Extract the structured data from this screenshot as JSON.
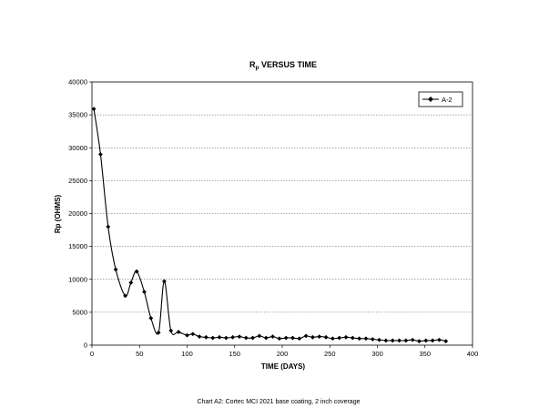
{
  "chart_data": {
    "type": "line",
    "title_main": "R",
    "title_sub": "p",
    "title_rest": " VERSUS TIME",
    "xlabel": "TIME (DAYS)",
    "ylabel": "Rp (OHMS)",
    "xlim": [
      0,
      400
    ],
    "ylim": [
      0,
      40000
    ],
    "xticks": [
      0,
      50,
      100,
      150,
      200,
      250,
      300,
      350,
      400
    ],
    "yticks": [
      0,
      5000,
      10000,
      15000,
      20000,
      25000,
      30000,
      35000,
      40000
    ],
    "grid": "horizontal-dotted",
    "legend_position": "top-right",
    "series": [
      {
        "name": "A-2",
        "color": "#000000",
        "marker": "diamond",
        "x": [
          2,
          9,
          17,
          25,
          35,
          41,
          47,
          55,
          62,
          70,
          76,
          83,
          91,
          100,
          106,
          113,
          120,
          127,
          134,
          141,
          148,
          155,
          162,
          169,
          176,
          183,
          190,
          197,
          204,
          211,
          218,
          225,
          232,
          239,
          246,
          253,
          260,
          267,
          274,
          281,
          288,
          295,
          302,
          309,
          316,
          323,
          330,
          337,
          344,
          351,
          358,
          365,
          372
        ],
        "values": [
          35900,
          29000,
          18000,
          11500,
          7500,
          9500,
          11200,
          8100,
          4100,
          1900,
          9700,
          2200,
          2000,
          1500,
          1700,
          1300,
          1200,
          1100,
          1200,
          1100,
          1200,
          1300,
          1100,
          1100,
          1400,
          1100,
          1300,
          1000,
          1100,
          1100,
          1000,
          1400,
          1200,
          1300,
          1200,
          1000,
          1100,
          1200,
          1100,
          1000,
          1000,
          900,
          800,
          700,
          700,
          700,
          700,
          800,
          600,
          700,
          700,
          800,
          600
        ]
      }
    ]
  },
  "caption": "Chart A2: Cortec MCI 2021 base coating, 2 inch coverage"
}
